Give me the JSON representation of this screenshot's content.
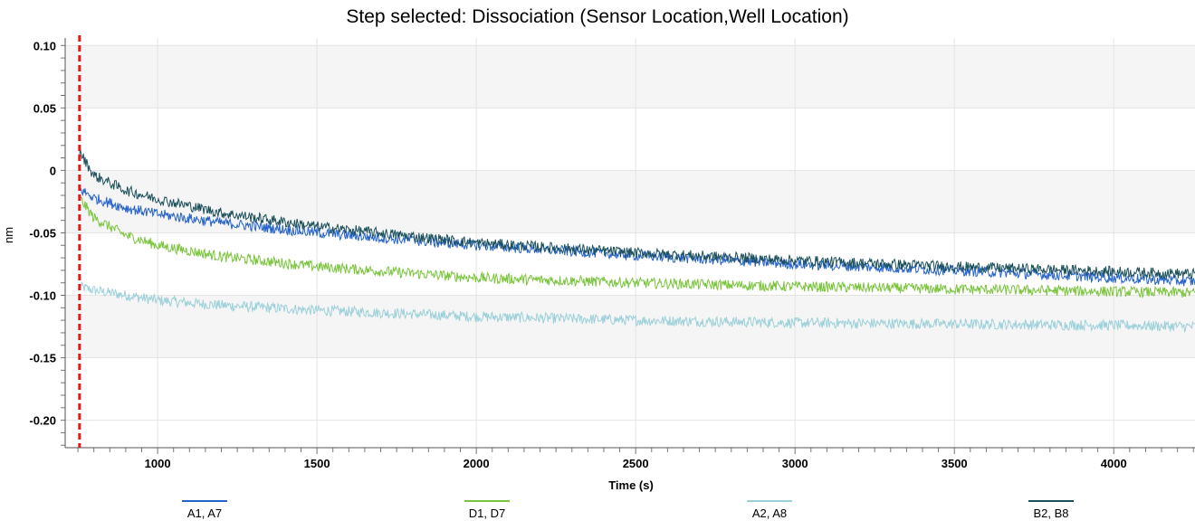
{
  "chart_data": {
    "type": "line",
    "title": "Step selected: Dissociation (Sensor Location,Well Location)",
    "xlabel": "Time (s)",
    "ylabel": "nm",
    "xlim": [
      710,
      4255
    ],
    "ylim": [
      -0.222,
      0.106
    ],
    "x_ticks": [
      1000,
      1500,
      2000,
      2500,
      3000,
      3500,
      4000
    ],
    "x_tick_labels": [
      "1000",
      "1500",
      "2000",
      "2500",
      "3000",
      "3500",
      "4000"
    ],
    "y_ticks": [
      0.1,
      0.05,
      0,
      -0.05,
      -0.1,
      -0.15,
      -0.2
    ],
    "y_tick_labels": [
      "0.10",
      "0.05",
      "0",
      "-0.05",
      "-0.10",
      "-0.15",
      "-0.20"
    ],
    "grid": true,
    "legend_position": "bottom",
    "step_marker_x": 755,
    "step_marker_color": "#e21a1a",
    "series": [
      {
        "name": "A1, A7",
        "color": "#2563c9",
        "x": [
          755,
          800,
          900,
          1000,
          1200,
          1500,
          2000,
          2500,
          3000,
          3500,
          4000,
          4255
        ],
        "y": [
          -0.015,
          -0.022,
          -0.03,
          -0.035,
          -0.042,
          -0.05,
          -0.06,
          -0.068,
          -0.075,
          -0.08,
          -0.086,
          -0.089
        ]
      },
      {
        "name": "D1, D7",
        "color": "#7ac43c",
        "x": [
          755,
          800,
          900,
          1000,
          1200,
          1500,
          2000,
          2500,
          3000,
          3500,
          4000,
          4255
        ],
        "y": [
          -0.022,
          -0.038,
          -0.052,
          -0.06,
          -0.069,
          -0.077,
          -0.086,
          -0.09,
          -0.093,
          -0.095,
          -0.097,
          -0.098
        ]
      },
      {
        "name": "A2, A8",
        "color": "#9bd0da",
        "x": [
          755,
          800,
          900,
          1000,
          1200,
          1500,
          2000,
          2500,
          3000,
          3500,
          4000,
          4255
        ],
        "y": [
          -0.093,
          -0.096,
          -0.1,
          -0.104,
          -0.108,
          -0.112,
          -0.117,
          -0.12,
          -0.122,
          -0.123,
          -0.124,
          -0.125
        ]
      },
      {
        "name": "B2, B8",
        "color": "#1b4f5a",
        "x": [
          755,
          800,
          900,
          1000,
          1200,
          1500,
          2000,
          2500,
          3000,
          3500,
          4000,
          4255
        ],
        "y": [
          0.015,
          -0.004,
          -0.016,
          -0.023,
          -0.034,
          -0.045,
          -0.058,
          -0.066,
          -0.072,
          -0.077,
          -0.081,
          -0.083
        ]
      }
    ]
  }
}
